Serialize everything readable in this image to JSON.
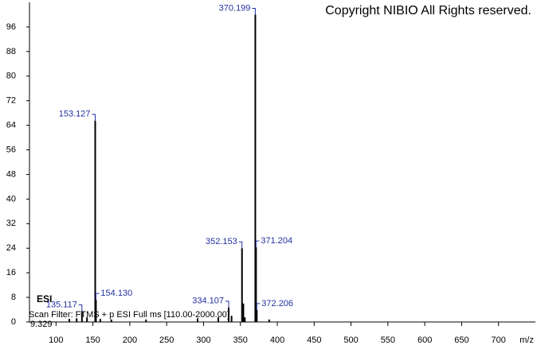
{
  "chart_data": {
    "type": "stem",
    "copyright": "Copyright NIBIO All Rights reserved.",
    "annotation": "ESI",
    "scan_filter": "Scan Filter: FTMS + p ESI Full ms [110.00-2000.00]",
    "retention": "9.329",
    "xlabel": "m/z",
    "x": [
      135.117,
      153.127,
      154.13,
      334.107,
      352.153,
      370.199,
      371.204,
      372.206,
      118,
      128,
      142,
      160,
      175,
      222,
      292,
      320,
      338,
      354,
      356,
      389
    ],
    "x_labels": [
      "135.117",
      "153.127",
      "154.130",
      "334.107",
      "352.153",
      "370.199",
      "371.204",
      "372.206",
      null,
      null,
      null,
      null,
      null,
      null,
      null,
      null,
      null,
      null,
      null,
      null
    ],
    "values": [
      3.5,
      65.5,
      7.2,
      4.7,
      24,
      100,
      24.3,
      3.9,
      1,
      1.2,
      1.5,
      1,
      0.8,
      0.8,
      1.2,
      1.5,
      2,
      6,
      1.5,
      0.8
    ],
    "color": "#000000",
    "label_color": "#2030a0",
    "xlim": [
      64,
      750
    ],
    "ylim": [
      0,
      104
    ],
    "xticks": [
      100,
      150,
      200,
      250,
      300,
      350,
      400,
      450,
      500,
      550,
      600,
      650,
      700
    ],
    "yticks": [
      0,
      8,
      16,
      24,
      32,
      40,
      48,
      56,
      64,
      72,
      80,
      88,
      96
    ]
  }
}
